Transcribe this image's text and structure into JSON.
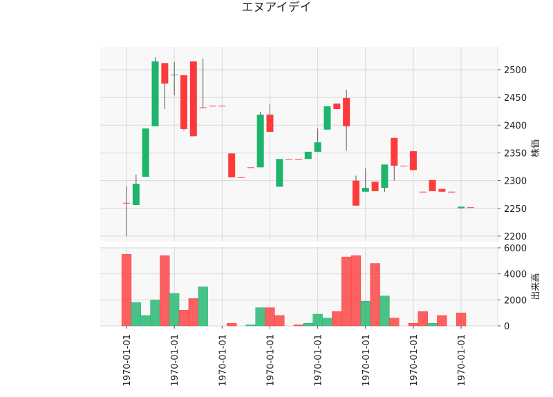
{
  "chart_data": {
    "type": "candlestick",
    "title": "エヌアイデイ",
    "categories": [
      "1970-01-01",
      null,
      null,
      null,
      null,
      "1970-01-01",
      null,
      null,
      null,
      null,
      "1970-01-01",
      null,
      null,
      null,
      null,
      "1970-01-01",
      null,
      null,
      null,
      null,
      "1970-01-01",
      null,
      null,
      null,
      null,
      "1970-01-01",
      null,
      null,
      null,
      null,
      "1970-01-01",
      null,
      null,
      null,
      null,
      "1970-01-01",
      null
    ],
    "open": [
      2260,
      2256,
      2307,
      2398,
      2512,
      2490,
      2490,
      2515,
      2432,
      2435,
      2435,
      2349,
      2306,
      2324,
      2324,
      2419,
      2289,
      2339,
      2339,
      2339,
      2352,
      2392,
      2439,
      2449,
      2300,
      2280,
      2298,
      2287,
      2377,
      2327,
      2353,
      2280,
      2301,
      2285,
      2280,
      2250,
      2252
    ],
    "high": [
      2290,
      2311,
      2394,
      2522,
      2512,
      2514,
      2490,
      2515,
      2520,
      2435,
      2435,
      2349,
      2306,
      2324,
      2424,
      2439,
      2339,
      2339,
      2339,
      2352,
      2394,
      2434,
      2439,
      2464,
      2309,
      2322,
      2298,
      2329,
      2377,
      2327,
      2353,
      2280,
      2301,
      2285,
      2280,
      2253,
      2252
    ],
    "low": [
      2200,
      2256,
      2307,
      2398,
      2429,
      2454,
      2390,
      2380,
      2431,
      2434,
      2434,
      2306,
      2306,
      2324,
      2324,
      2388,
      2289,
      2339,
      2339,
      2339,
      2352,
      2392,
      2429,
      2354,
      2255,
      2280,
      2281,
      2280,
      2300,
      2327,
      2319,
      2280,
      2281,
      2280,
      2280,
      2250,
      2252
    ],
    "close": [
      2260,
      2294,
      2394,
      2515,
      2475,
      2491,
      2393,
      2380,
      2431,
      2434,
      2434,
      2306,
      2306,
      2324,
      2419,
      2388,
      2339,
      2339,
      2339,
      2352,
      2369,
      2434,
      2429,
      2398,
      2255,
      2287,
      2281,
      2329,
      2327,
      2327,
      2319,
      2280,
      2281,
      2280,
      2280,
      2253,
      2252
    ],
    "volume": [
      5500,
      1800,
      800,
      2000,
      5400,
      2500,
      1200,
      2100,
      3000,
      0,
      0,
      200,
      0,
      80,
      1400,
      1400,
      800,
      0,
      80,
      200,
      900,
      600,
      1100,
      5300,
      5400,
      1900,
      4800,
      2300,
      600,
      0,
      200,
      1100,
      200,
      800,
      0,
      1000,
      0
    ],
    "up_color": "#1db46b",
    "down_color": "#fd3b3b",
    "ylabel": "株価",
    "ylim": [
      2190,
      2541
    ],
    "yticks": [
      2200,
      2250,
      2300,
      2350,
      2400,
      2450,
      2500
    ],
    "volume_ylabel": "出来高",
    "volume_ylim": [
      0,
      6050
    ],
    "volume_yticks": [
      0,
      2000,
      4000,
      6000
    ],
    "grid": true
  }
}
